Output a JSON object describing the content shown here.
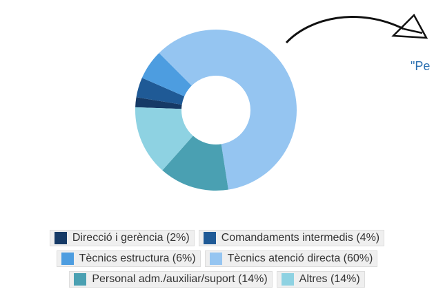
{
  "chart_data": {
    "type": "donut",
    "categories": [
      "Direcció i gerència (2%)",
      "Comandaments intermedis (4%)",
      "Tècnics estructura (6%)",
      "Tècnics atenció directa (60%)",
      "Personal adm./auxiliar/suport (14%)",
      "Altres (14%)"
    ],
    "values": [
      2,
      4,
      6,
      60,
      14,
      14
    ],
    "colors": [
      "#163a66",
      "#1f5a96",
      "#4d9de0",
      "#95c5f1",
      "#4aa0b2",
      "#8ed2e2"
    ],
    "annotation": "\"Pe"
  }
}
